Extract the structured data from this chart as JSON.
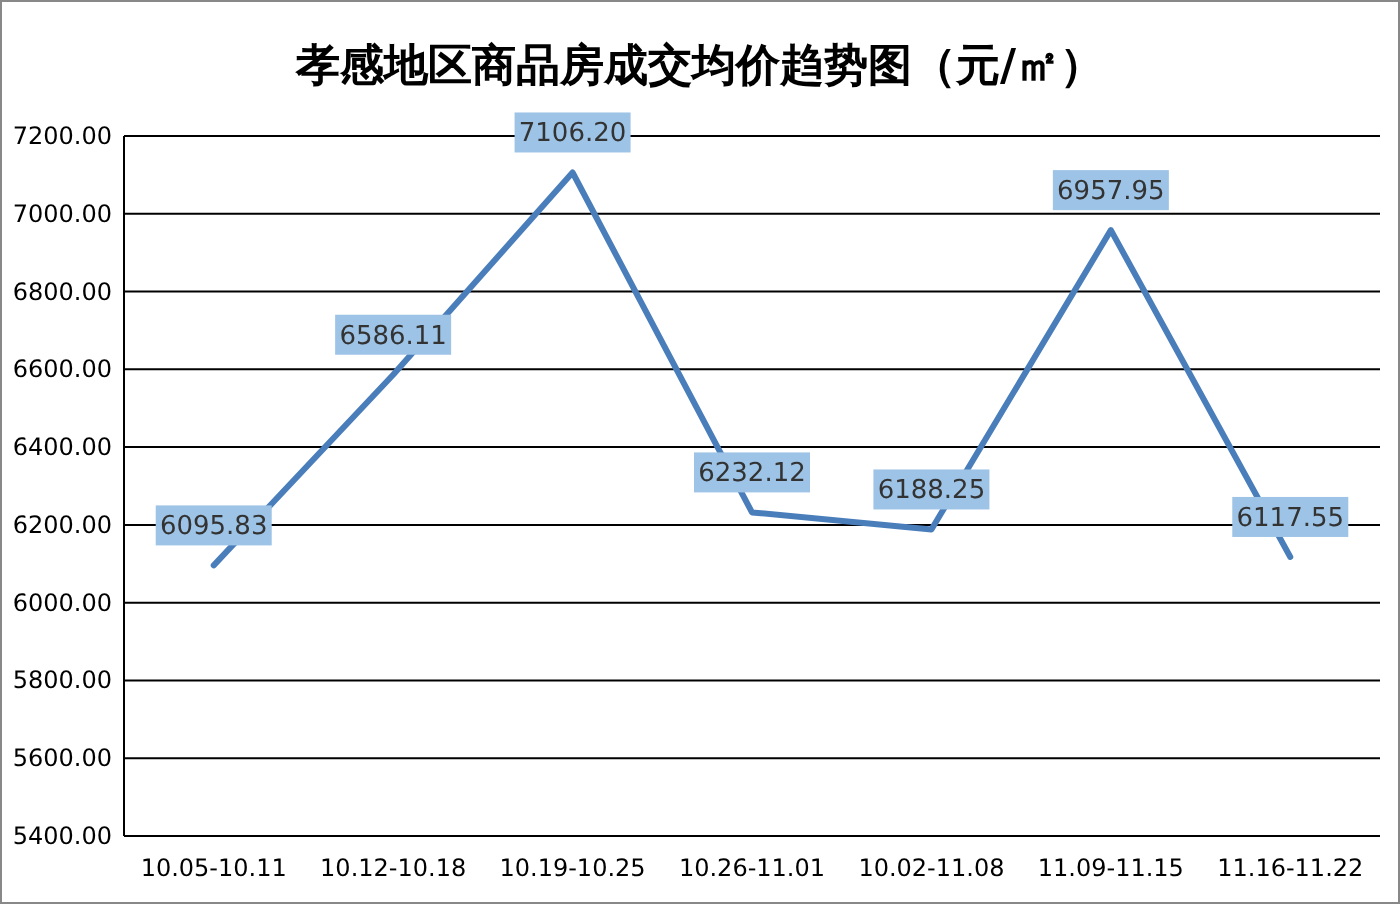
{
  "chart_data": {
    "type": "line",
    "title": "孝感地区商品房成交均价趋势图（元/㎡）",
    "categories": [
      "10.05-10.11",
      "10.12-10.18",
      "10.19-10.25",
      "10.26-11.01",
      "10.02-11.08",
      "11.09-11.15",
      "11.16-11.22"
    ],
    "series": [
      {
        "color": "#4a7ebb",
        "values": [
          6095.83,
          6586.11,
          7106.2,
          6232.12,
          6188.25,
          6957.95,
          6117.55
        ],
        "value_labels": [
          "6095.83",
          "6586.11",
          "7106.20",
          "6232.12",
          "6188.25",
          "6957.95",
          "6117.55"
        ]
      }
    ],
    "ylim": [
      5400,
      7200
    ],
    "yticks": [
      {
        "value": 5400,
        "label": "5400.00"
      },
      {
        "value": 5600,
        "label": "5600.00"
      },
      {
        "value": 5800,
        "label": "5800.00"
      },
      {
        "value": 6000,
        "label": "6000.00"
      },
      {
        "value": 6200,
        "label": "6200.00"
      },
      {
        "value": 6400,
        "label": "6400.00"
      },
      {
        "value": 6600,
        "label": "6600.00"
      },
      {
        "value": 6800,
        "label": "6800.00"
      },
      {
        "value": 7000,
        "label": "7000.00"
      },
      {
        "value": 7200,
        "label": "7200.00"
      }
    ],
    "grid": "y",
    "marker": "none",
    "line_style": "solid"
  }
}
